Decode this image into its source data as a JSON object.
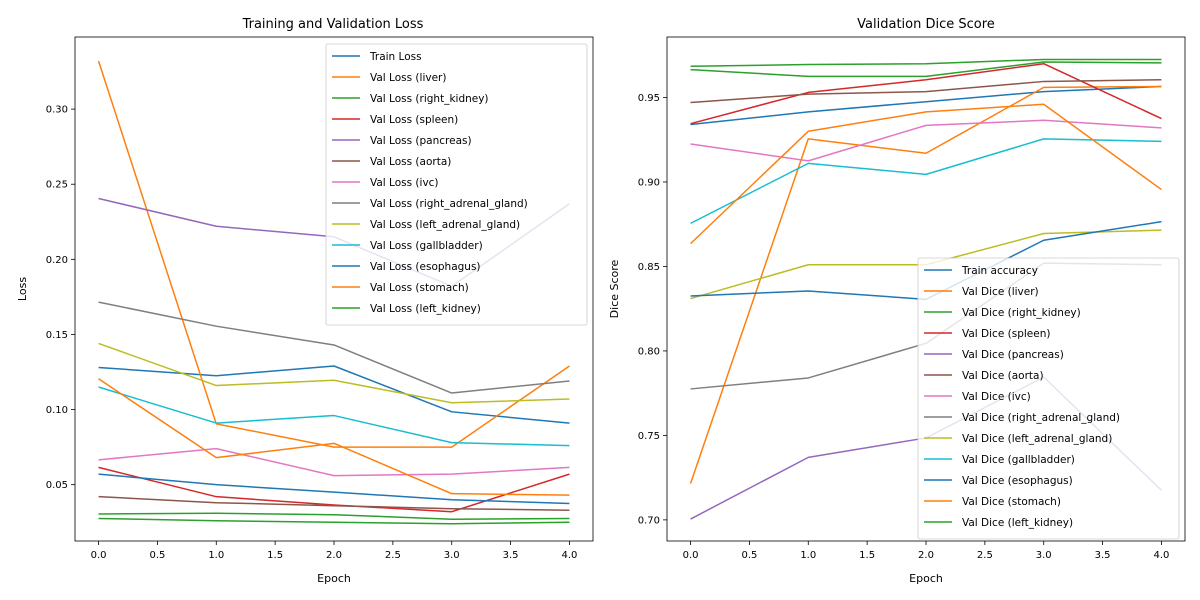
{
  "chart_data": [
    {
      "type": "line",
      "title": "Training and Validation Loss",
      "xlabel": "Epoch",
      "ylabel": "Loss",
      "x": [
        0,
        1,
        2,
        3,
        4
      ],
      "xlim": [
        -0.2,
        4.2
      ],
      "ylim": [
        0.0125,
        0.348
      ],
      "xticks": [
        0.0,
        0.5,
        1.0,
        1.5,
        2.0,
        2.5,
        3.0,
        3.5,
        4.0
      ],
      "xtick_labels": [
        "0.0",
        "0.5",
        "1.0",
        "1.5",
        "2.0",
        "2.5",
        "3.0",
        "3.5",
        "4.0"
      ],
      "yticks": [
        0.05,
        0.1,
        0.15,
        0.2,
        0.25,
        0.3
      ],
      "ytick_labels": [
        "0.05",
        "0.10",
        "0.15",
        "0.20",
        "0.25",
        "0.30"
      ],
      "grid": false,
      "legend_position": "top-right",
      "series": [
        {
          "name": "Train Loss",
          "color": "#1f77b4",
          "values": [
            0.128,
            0.1225,
            0.129,
            0.0985,
            0.091
          ]
        },
        {
          "name": "Val Loss (liver)",
          "color": "#ff7f0e",
          "values": [
            0.332,
            0.0905,
            0.075,
            0.075,
            0.129
          ]
        },
        {
          "name": "Val Loss (right_kidney)",
          "color": "#2ca02c",
          "values": [
            0.0305,
            0.031,
            0.03,
            0.027,
            0.0275
          ]
        },
        {
          "name": "Val Loss (spleen)",
          "color": "#d62728",
          "values": [
            0.0615,
            0.042,
            0.0365,
            0.032,
            0.057
          ]
        },
        {
          "name": "Val Loss (pancreas)",
          "color": "#9467bd",
          "values": [
            0.2405,
            0.222,
            0.215,
            0.182,
            0.237
          ]
        },
        {
          "name": "Val Loss (aorta)",
          "color": "#8c564b",
          "values": [
            0.042,
            0.038,
            0.036,
            0.034,
            0.033
          ]
        },
        {
          "name": "Val Loss (ivc)",
          "color": "#e377c2",
          "values": [
            0.0665,
            0.074,
            0.056,
            0.057,
            0.0615
          ]
        },
        {
          "name": "Val Loss (right_adrenal_gland)",
          "color": "#7f7f7f",
          "values": [
            0.1715,
            0.1555,
            0.143,
            0.111,
            0.119
          ]
        },
        {
          "name": "Val Loss (left_adrenal_gland)",
          "color": "#bcbd22",
          "values": [
            0.144,
            0.116,
            0.1195,
            0.1045,
            0.107
          ]
        },
        {
          "name": "Val Loss (gallbladder)",
          "color": "#17becf",
          "values": [
            0.115,
            0.091,
            0.096,
            0.078,
            0.076
          ]
        },
        {
          "name": "Val Loss (esophagus)",
          "color": "#1f77b4",
          "values": [
            0.057,
            0.05,
            0.045,
            0.04,
            0.0375
          ]
        },
        {
          "name": "Val Loss (stomach)",
          "color": "#ff7f0e",
          "values": [
            0.1205,
            0.068,
            0.0775,
            0.044,
            0.043
          ]
        },
        {
          "name": "Val Loss (left_kidney)",
          "color": "#2ca02c",
          "values": [
            0.0275,
            0.026,
            0.025,
            0.024,
            0.025
          ]
        }
      ]
    },
    {
      "type": "line",
      "title": "Validation Dice Score",
      "xlabel": "Epoch",
      "ylabel": "Dice Score",
      "x": [
        0,
        1,
        2,
        3,
        4
      ],
      "xlim": [
        -0.2,
        4.2
      ],
      "ylim": [
        0.6875,
        0.9858
      ],
      "xticks": [
        0.0,
        0.5,
        1.0,
        1.5,
        2.0,
        2.5,
        3.0,
        3.5,
        4.0
      ],
      "xtick_labels": [
        "0.0",
        "0.5",
        "1.0",
        "1.5",
        "2.0",
        "2.5",
        "3.0",
        "3.5",
        "4.0"
      ],
      "yticks": [
        0.7,
        0.75,
        0.8,
        0.85,
        0.9,
        0.95
      ],
      "ytick_labels": [
        "0.70",
        "0.75",
        "0.80",
        "0.85",
        "0.90",
        "0.95"
      ],
      "grid": false,
      "legend_position": "bottom-right",
      "series": [
        {
          "name": "Train accuracy",
          "color": "#1f77b4",
          "values": [
            0.934,
            0.9415,
            0.9475,
            0.9535,
            0.9565
          ]
        },
        {
          "name": "Val Dice (liver)",
          "color": "#ff7f0e",
          "values": [
            0.7215,
            0.9255,
            0.917,
            0.956,
            0.9565
          ]
        },
        {
          "name": "Val Dice (right_kidney)",
          "color": "#2ca02c",
          "values": [
            0.9665,
            0.9625,
            0.9625,
            0.971,
            0.9705
          ]
        },
        {
          "name": "Val Dice (spleen)",
          "color": "#d62728",
          "values": [
            0.9345,
            0.953,
            0.9605,
            0.97,
            0.9375
          ]
        },
        {
          "name": "Val Dice (pancreas)",
          "color": "#9467bd",
          "values": [
            0.7005,
            0.737,
            0.7485,
            0.7845,
            0.7175
          ]
        },
        {
          "name": "Val Dice (aorta)",
          "color": "#8c564b",
          "values": [
            0.947,
            0.952,
            0.9535,
            0.9595,
            0.9605
          ]
        },
        {
          "name": "Val Dice (ivc)",
          "color": "#e377c2",
          "values": [
            0.9225,
            0.9125,
            0.9335,
            0.9365,
            0.932
          ]
        },
        {
          "name": "Val Dice (right_adrenal_gland)",
          "color": "#7f7f7f",
          "values": [
            0.7775,
            0.784,
            0.8045,
            0.852,
            0.851
          ]
        },
        {
          "name": "Val Dice (left_adrenal_gland)",
          "color": "#bcbd22",
          "values": [
            0.831,
            0.851,
            0.851,
            0.8695,
            0.8715
          ]
        },
        {
          "name": "Val Dice (gallbladder)",
          "color": "#17becf",
          "values": [
            0.8755,
            0.911,
            0.9045,
            0.9255,
            0.924
          ]
        },
        {
          "name": "Val Dice (esophagus)",
          "color": "#1f77b4",
          "values": [
            0.8325,
            0.8355,
            0.8305,
            0.8655,
            0.8765
          ]
        },
        {
          "name": "Val Dice (stomach)",
          "color": "#ff7f0e",
          "values": [
            0.8635,
            0.93,
            0.9415,
            0.946,
            0.8955
          ]
        },
        {
          "name": "Val Dice (left_kidney)",
          "color": "#2ca02c",
          "values": [
            0.9685,
            0.9695,
            0.97,
            0.9725,
            0.9725
          ]
        }
      ]
    }
  ]
}
